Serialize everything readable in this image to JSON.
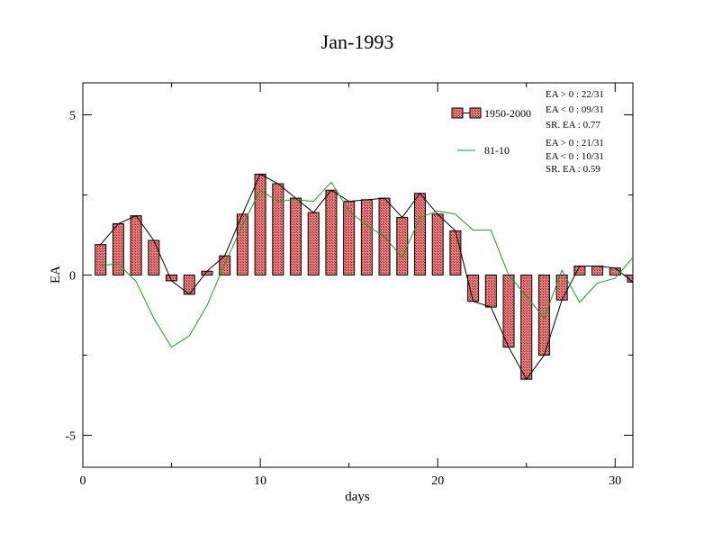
{
  "chart_data": {
    "type": "bar",
    "title": "Jan-1993",
    "xlabel": "days",
    "ylabel": "EA",
    "xlim": [
      0,
      31
    ],
    "ylim": [
      -6,
      6
    ],
    "xticks": [
      0,
      10,
      20,
      30
    ],
    "yticks": [
      -5,
      0,
      5
    ],
    "grid": false,
    "legend_placement": "top-right",
    "x": [
      1,
      2,
      3,
      4,
      5,
      6,
      7,
      8,
      9,
      10,
      11,
      12,
      13,
      14,
      15,
      16,
      17,
      18,
      19,
      20,
      21,
      22,
      23,
      24,
      25,
      26,
      27,
      28,
      29,
      30,
      31
    ],
    "series": [
      {
        "name": "1950-2000",
        "kind": "bar",
        "color": "#e07070",
        "values": [
          0.95,
          1.6,
          1.85,
          1.08,
          -0.18,
          -0.6,
          0.12,
          0.6,
          1.9,
          3.15,
          2.85,
          2.4,
          1.95,
          2.65,
          2.3,
          2.35,
          2.4,
          1.8,
          2.55,
          1.9,
          1.38,
          -0.82,
          -1.0,
          -2.25,
          -3.25,
          -2.5,
          -0.78,
          0.28,
          0.28,
          0.22,
          -0.22
        ]
      },
      {
        "name": "81-10",
        "kind": "line",
        "color": "#1a9e1a",
        "values": [
          0.3,
          0.35,
          -0.2,
          -1.35,
          -2.25,
          -1.9,
          -0.95,
          0.35,
          1.55,
          2.65,
          2.3,
          2.35,
          2.3,
          2.9,
          2.0,
          1.55,
          1.2,
          0.55,
          1.8,
          2.0,
          1.9,
          1.4,
          1.4,
          0.0,
          -0.65,
          -1.35,
          0.15,
          -0.85,
          -0.25,
          -0.1,
          0.55
        ]
      }
    ],
    "stats": [
      [
        "EA > 0 : 22/31",
        "EA < 0 : 09/31",
        "SR. EA :  0.77"
      ],
      [
        "EA > 0 : 21/31",
        "EA < 0 : 10/31",
        "SR. EA :  0.59"
      ]
    ]
  }
}
